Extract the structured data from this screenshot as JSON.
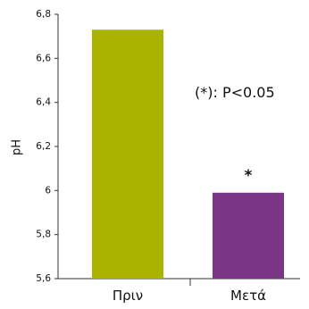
{
  "chart_data": {
    "type": "bar",
    "categories": [
      "Πριν",
      "Μετά"
    ],
    "values": [
      6.73,
      5.99
    ],
    "ylabel": "pH",
    "xlabel": "",
    "ylim": [
      5.6,
      6.8
    ],
    "yticks": [
      "5,6",
      "5,8",
      "6",
      "6,2",
      "6,4",
      "6,6",
      "6,8"
    ],
    "ytick_values": [
      5.6,
      5.8,
      6.0,
      6.2,
      6.4,
      6.6,
      6.8
    ],
    "colors": [
      "#a9b300",
      "#7b3586"
    ],
    "annotation": "(*): P<0.05",
    "significance_mark": "*",
    "significant_category": "Μετά",
    "grid": false,
    "legend": "none"
  }
}
